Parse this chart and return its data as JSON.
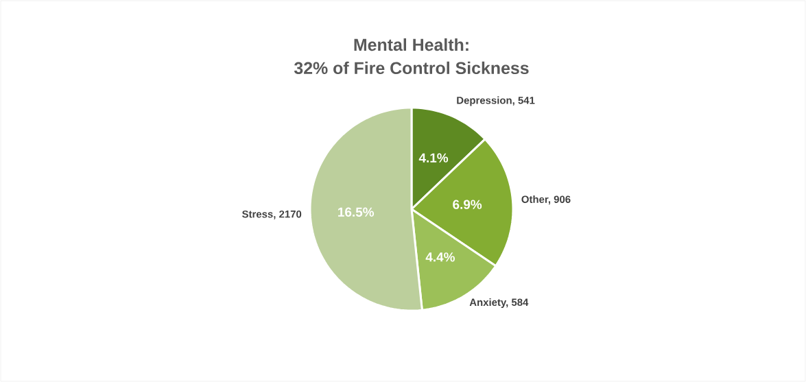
{
  "chart_data": {
    "type": "pie",
    "title": "Mental Health:",
    "subtitle": "32% of Fire Control Sickness",
    "categories": [
      "Depression, 541",
      "Other, 906",
      "Anxiety, 584",
      "Stress, 2170"
    ],
    "values": [
      541,
      906,
      584,
      2170
    ],
    "annotations": [
      "4.1%",
      "6.9%",
      "4.4%",
      "16.5%"
    ],
    "colors": [
      "#5e8a22",
      "#84ad32",
      "#9cc058",
      "#bccf9c"
    ]
  }
}
